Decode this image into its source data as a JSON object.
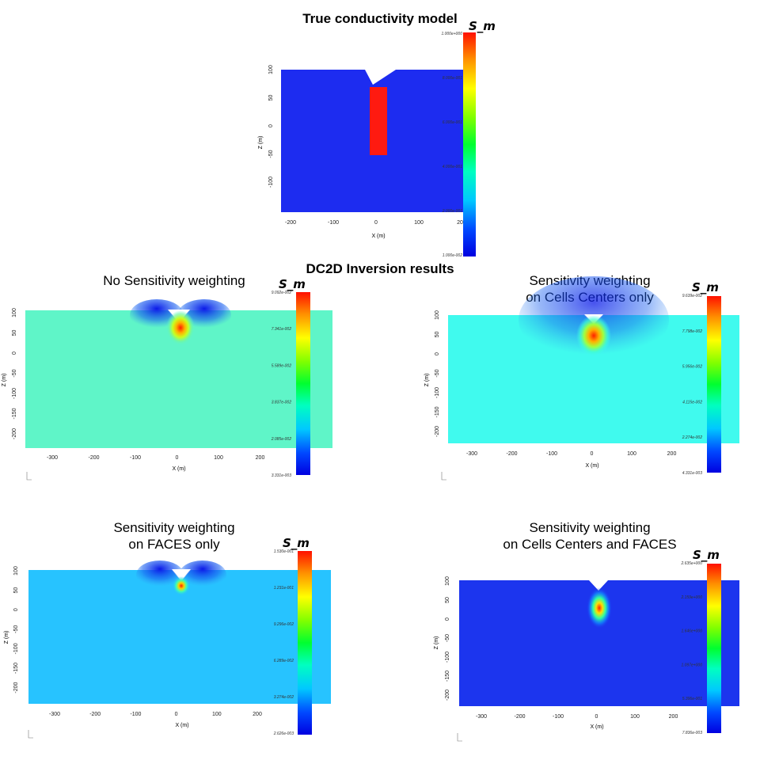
{
  "title": "True conductivity model",
  "subtitle": "DC2D Inversion results",
  "colors": {
    "background": "#1d2cf0",
    "block": "#ff1a10",
    "inv1_background": "#5ff5c8",
    "inv2_background": "#40faee",
    "inv3_background": "#27c3ff",
    "inv4_background": "#1c35ee"
  },
  "panels": [
    {
      "id": "true",
      "title": "",
      "title2": "",
      "colorbar_label": "S_m",
      "cb_ticks": [
        "1.000e+000",
        "8.000e-001",
        "6.000e-001",
        "4.000e-001",
        "2.000e-001",
        "1.000e-002"
      ],
      "y_ticks": [
        "100",
        "50",
        "0",
        "-50",
        "-100"
      ],
      "x_ticks": [
        "-200",
        "-100",
        "0",
        "100",
        "200"
      ],
      "xlabel": "X (m)",
      "ylabel": "Z (m)"
    },
    {
      "id": "no-sens",
      "title": "No Sensitivity weighting",
      "title2": "",
      "colorbar_label": "S_m",
      "cb_ticks": [
        "9.092e-002",
        "7.341e-002",
        "5.589e-002",
        "3.837e-002",
        "2.085e-002",
        "3.331e-003"
      ],
      "y_ticks": [
        "100",
        "50",
        "0",
        "-50",
        "-100",
        "-150",
        "-200"
      ],
      "x_ticks": [
        "-300",
        "-200",
        "-100",
        "0",
        "100",
        "200"
      ],
      "xlabel": "X (m)",
      "ylabel": "Z (m)"
    },
    {
      "id": "cells",
      "title": "Sensitivity weighting",
      "title2": "on Cells Centers only",
      "colorbar_label": "S_m",
      "cb_ticks": [
        "9.639e-002",
        "7.798e-002",
        "5.956e-002",
        "4.115e-002",
        "2.274e-002",
        "4.331e-003"
      ],
      "y_ticks": [
        "100",
        "50",
        "0",
        "-50",
        "-100",
        "-150",
        "-200"
      ],
      "x_ticks": [
        "-300",
        "-200",
        "-100",
        "0",
        "100",
        "200"
      ],
      "xlabel": "X (m)",
      "ylabel": "Z (m)"
    },
    {
      "id": "faces",
      "title": "Sensitivity weighting",
      "title2": "on FACES  only",
      "colorbar_label": "S_m",
      "cb_ticks": [
        "1.530e-001",
        "1.231e-001",
        "9.296e-002",
        "6.289e-002",
        "3.274e-002",
        "2.626e-003"
      ],
      "y_ticks": [
        "100",
        "50",
        "0",
        "-50",
        "-100",
        "-150",
        "-200"
      ],
      "x_ticks": [
        "-300",
        "-200",
        "-100",
        "0",
        "100",
        "200"
      ],
      "xlabel": "X (m)",
      "ylabel": "Z (m)"
    },
    {
      "id": "both",
      "title": "Sensitivity weighting",
      "title2": "on Cells Centers and FACES",
      "colorbar_label": "S_m",
      "cb_ticks": [
        "2.635e+000",
        "2.159e+000",
        "1.646e+000",
        "1.097e+000",
        "5.396e-001",
        "7.836e-003"
      ],
      "y_ticks": [
        "100",
        "50",
        "0",
        "-50",
        "-100",
        "-150",
        "-200"
      ],
      "x_ticks": [
        "-300",
        "-200",
        "-100",
        "0",
        "100",
        "200"
      ],
      "xlabel": "X (m)",
      "ylabel": "Z (m)"
    }
  ]
}
